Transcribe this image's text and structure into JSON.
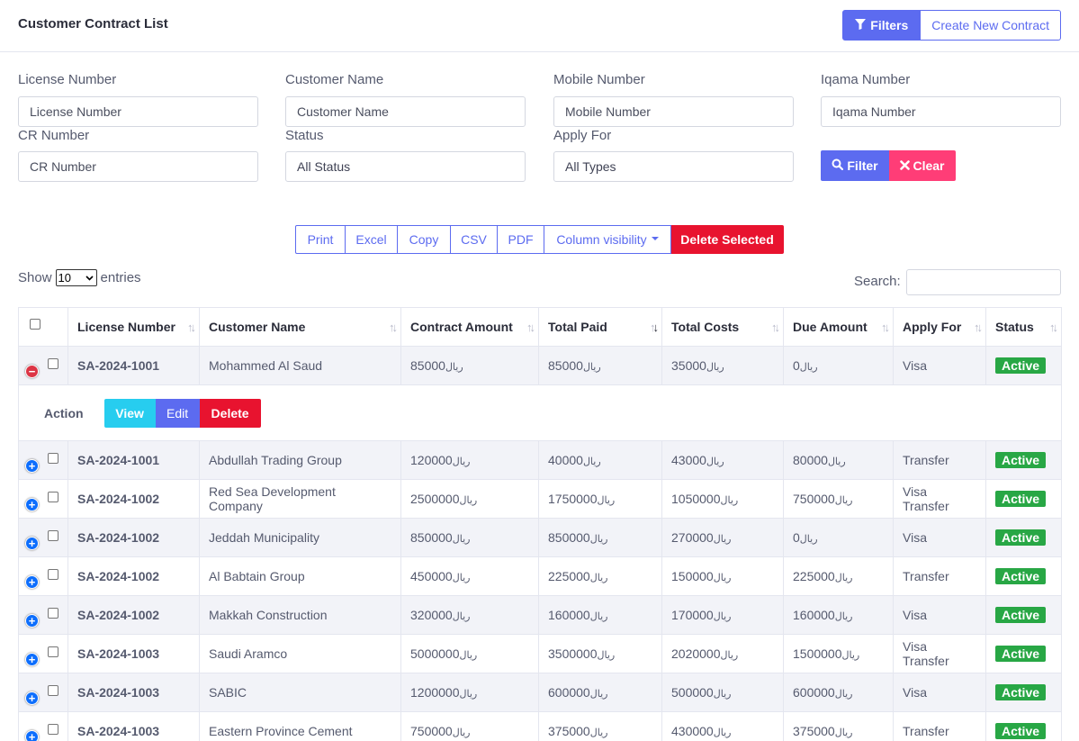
{
  "header": {
    "title": "Customer Contract List",
    "filters_label": "Filters",
    "create_label": "Create New Contract"
  },
  "filters": {
    "license": {
      "label": "License Number",
      "placeholder": "License Number"
    },
    "customer": {
      "label": "Customer Name",
      "placeholder": "Customer Name"
    },
    "mobile": {
      "label": "Mobile Number",
      "placeholder": "Mobile Number"
    },
    "iqama": {
      "label": "Iqama Number",
      "placeholder": "Iqama Number"
    },
    "cr": {
      "label": "CR Number",
      "placeholder": "CR Number"
    },
    "status": {
      "label": "Status",
      "value": "All Status"
    },
    "apply_for": {
      "label": "Apply For",
      "value": "All Types"
    },
    "filter_label": "Filter",
    "clear_label": "Clear"
  },
  "toolbar": {
    "print": "Print",
    "excel": "Excel",
    "copy": "Copy",
    "csv": "CSV",
    "pdf": "PDF",
    "column_visibility": "Column visibility",
    "delete_selected": "Delete Selected"
  },
  "table_controls": {
    "show": "Show",
    "length": "10",
    "entries": "entries",
    "search_label": "Search:"
  },
  "columns": [
    "License Number",
    "Customer Name",
    "Contract Amount",
    "Total Paid",
    "Total Costs",
    "Due Amount",
    "Apply For",
    "Status"
  ],
  "currency": "ريال",
  "expanded_row": {
    "license": "SA-2024-1001",
    "customer": "Mohammed Al Saud",
    "contract": "85000",
    "paid": "85000",
    "costs": "35000",
    "due": "0",
    "apply_for": "Visa",
    "status": "Active",
    "action_label": "Action",
    "view": "View",
    "edit": "Edit",
    "delete": "Delete"
  },
  "rows": [
    {
      "license": "SA-2024-1001",
      "customer": "Abdullah Trading Group",
      "contract": "120000",
      "paid": "40000",
      "costs": "43000",
      "due": "80000",
      "apply_for": "Transfer",
      "status": "Active"
    },
    {
      "license": "SA-2024-1002",
      "customer": "Red Sea Development Company",
      "contract": "2500000",
      "paid": "1750000",
      "costs": "1050000",
      "due": "750000",
      "apply_for": "Visa Transfer",
      "status": "Active"
    },
    {
      "license": "SA-2024-1002",
      "customer": "Jeddah Municipality",
      "contract": "850000",
      "paid": "850000",
      "costs": "270000",
      "due": "0",
      "apply_for": "Visa",
      "status": "Active"
    },
    {
      "license": "SA-2024-1002",
      "customer": "Al Babtain Group",
      "contract": "450000",
      "paid": "225000",
      "costs": "150000",
      "due": "225000",
      "apply_for": "Transfer",
      "status": "Active"
    },
    {
      "license": "SA-2024-1002",
      "customer": "Makkah Construction",
      "contract": "320000",
      "paid": "160000",
      "costs": "170000",
      "due": "160000",
      "apply_for": "Visa",
      "status": "Active"
    },
    {
      "license": "SA-2024-1003",
      "customer": "Saudi Aramco",
      "contract": "5000000",
      "paid": "3500000",
      "costs": "2020000",
      "due": "1500000",
      "apply_for": "Visa Transfer",
      "status": "Active"
    },
    {
      "license": "SA-2024-1003",
      "customer": "SABIC",
      "contract": "1200000",
      "paid": "600000",
      "costs": "500000",
      "due": "600000",
      "apply_for": "Visa",
      "status": "Active"
    },
    {
      "license": "SA-2024-1003",
      "customer": "Eastern Province Cement",
      "contract": "750000",
      "paid": "375000",
      "costs": "430000",
      "due": "375000",
      "apply_for": "Transfer",
      "status": "Active"
    }
  ]
}
